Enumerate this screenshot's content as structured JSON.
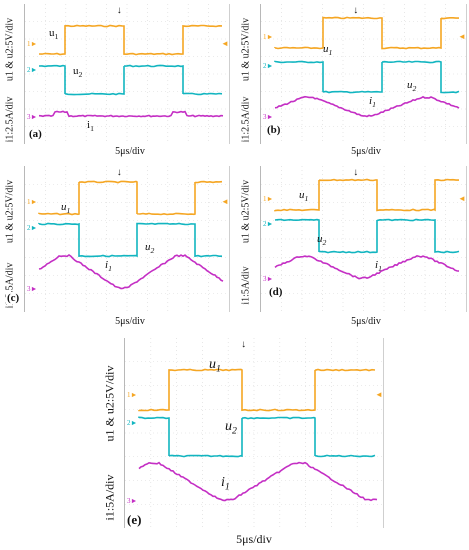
{
  "xlabel": "5μs/div",
  "colors": {
    "u1": "#f5a623",
    "u2": "#12b5c0",
    "i1": "#c42fc4"
  },
  "panels": [
    {
      "id": "a",
      "label": "(a)",
      "ylabel_top": "u1 & u2:5V/div",
      "ylabel_bottom": "i1:2.5A/div",
      "chart_data": {
        "type": "line",
        "x_unit": "μs",
        "period_us": 13.5,
        "series": [
          {
            "name": "u1",
            "wave": "square",
            "high_rel": 1.0,
            "low_rel": 0.0,
            "duty": 0.5,
            "phase": 0.0
          },
          {
            "name": "u2",
            "wave": "square",
            "high_rel": 1.0,
            "low_rel": 0.0,
            "duty": 0.5,
            "phase": 0.5
          },
          {
            "name": "i1",
            "wave": "flat",
            "amplitude_rel": 0.05
          }
        ]
      },
      "trace_labels": {
        "u1": "u1",
        "u2": "u2",
        "i1": "i1"
      }
    },
    {
      "id": "b",
      "label": "(b)",
      "ylabel_top": "u1 & u2:5V/div",
      "ylabel_bottom": "i1:2.5A/div",
      "chart_data": {
        "type": "line",
        "x_unit": "μs",
        "period_us": 13.5,
        "series": [
          {
            "name": "u1",
            "wave": "square"
          },
          {
            "name": "u2",
            "wave": "square"
          },
          {
            "name": "i1",
            "wave": "trapezoid",
            "amplitude_rel": 0.5
          }
        ]
      },
      "trace_labels": {
        "u1": "u1",
        "u2": "u2",
        "i1": "i1"
      }
    },
    {
      "id": "c",
      "label": "(c)",
      "ylabel_top": "u1 & u2:5V/div",
      "ylabel_bottom": "i1:2.5A/div",
      "chart_data": {
        "type": "line",
        "x_unit": "μs",
        "period_us": 13.5,
        "series": [
          {
            "name": "u1",
            "wave": "square"
          },
          {
            "name": "u2",
            "wave": "square"
          },
          {
            "name": "i1",
            "wave": "trapezoid",
            "amplitude_rel": 1.0
          }
        ]
      },
      "trace_labels": {
        "u1": "u1",
        "u2": "u2",
        "i1": "i1"
      }
    },
    {
      "id": "d",
      "label": "(d)",
      "ylabel_top": "u1 & u2:5V/div",
      "ylabel_bottom": "i1:5A/div",
      "chart_data": {
        "type": "line",
        "x_unit": "μs",
        "period_us": 13.5,
        "series": [
          {
            "name": "u1",
            "wave": "square"
          },
          {
            "name": "u2",
            "wave": "square"
          },
          {
            "name": "i1",
            "wave": "trapezoid",
            "amplitude_rel": 0.6
          }
        ]
      },
      "trace_labels": {
        "u1": "u1",
        "u2": "u2",
        "i1": "i1"
      }
    },
    {
      "id": "e",
      "label": "(e)",
      "ylabel_top": "u1 & u2:5V/div",
      "ylabel_bottom": "i1:5A/div",
      "chart_data": {
        "type": "line",
        "x_unit": "μs",
        "period_us": 13.5,
        "series": [
          {
            "name": "u1",
            "wave": "square"
          },
          {
            "name": "u2",
            "wave": "square"
          },
          {
            "name": "i1",
            "wave": "trapezoid",
            "amplitude_rel": 0.9
          }
        ]
      },
      "trace_labels": {
        "u1": "u1",
        "u2": "u2",
        "i1": "i1"
      }
    }
  ]
}
